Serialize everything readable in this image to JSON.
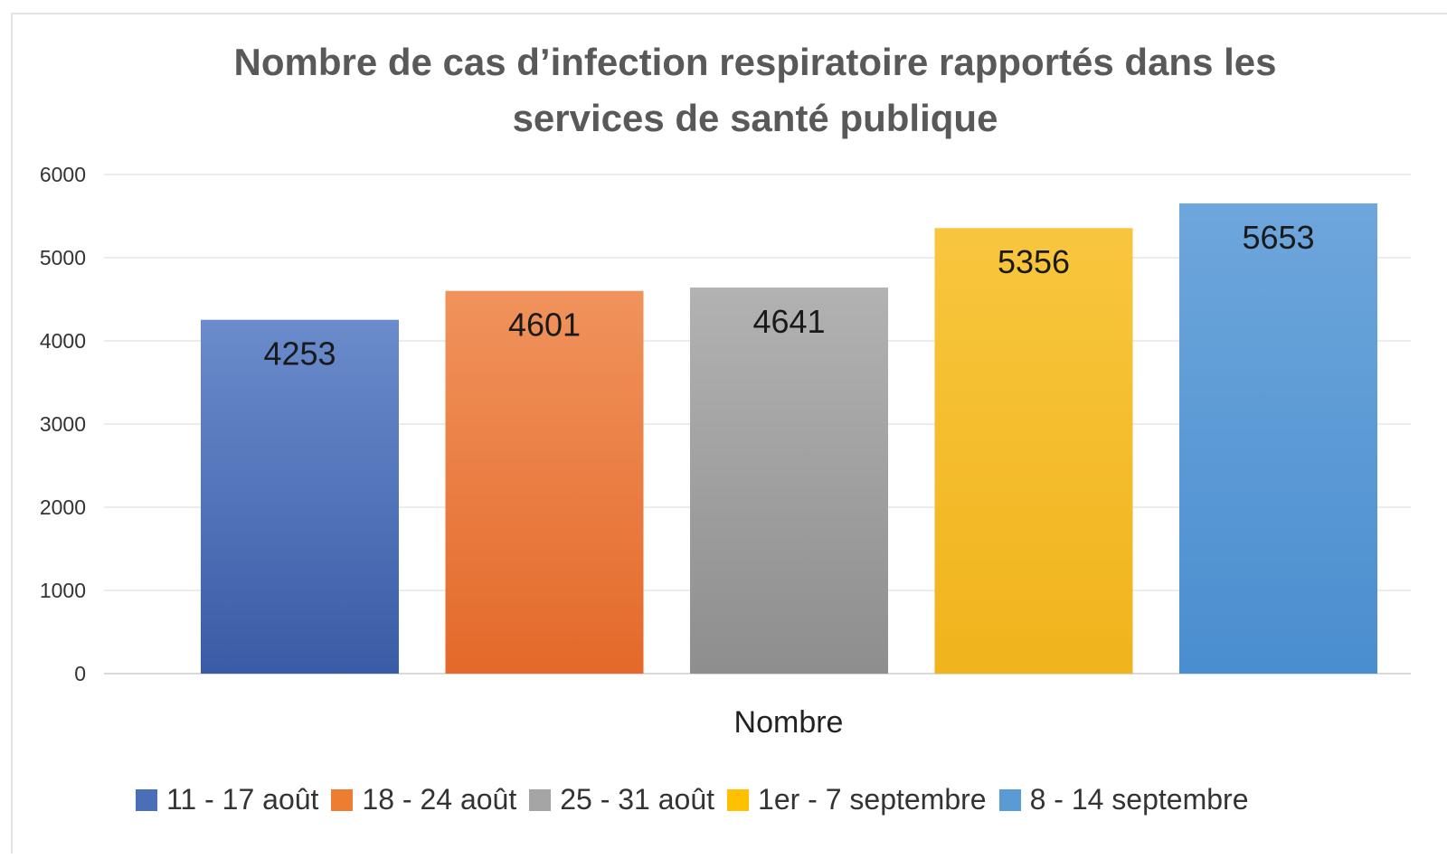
{
  "chart_data": {
    "type": "bar",
    "title": "Nombre de cas d’infection respiratoire rapportés dans les services de santé publique",
    "title_lines": [
      "Nombre de cas d’infection respiratoire rapportés dans les",
      "services de santé publique"
    ],
    "xlabel": "Nombre",
    "ylabel": "",
    "ylim": [
      0,
      6000
    ],
    "yticks": [
      0,
      1000,
      2000,
      3000,
      4000,
      5000,
      6000
    ],
    "grid": true,
    "legend_position": "bottom",
    "categories": [
      "Nombre"
    ],
    "series": [
      {
        "name": "11 - 17 août",
        "values": [
          4253
        ],
        "color": "#4a6fb8",
        "color_top": "#6a8ccc",
        "color_bottom": "#3a5ca6"
      },
      {
        "name": "18 - 24 août",
        "values": [
          4601
        ],
        "color": "#ed7d31",
        "color_top": "#f0935c",
        "color_bottom": "#e4692a"
      },
      {
        "name": "25 - 31 août",
        "values": [
          4641
        ],
        "color": "#a5a5a5",
        "color_top": "#b2b2b2",
        "color_bottom": "#8e8e8e"
      },
      {
        "name": "1er - 7 septembre",
        "values": [
          5356
        ],
        "color": "#ffc000",
        "color_top": "#f8c63e",
        "color_bottom": "#f0b41c"
      },
      {
        "name": "8 - 14 septembre",
        "values": [
          5653
        ],
        "color": "#5b9bd5",
        "color_top": "#6ea6dc",
        "color_bottom": "#4a8ecf"
      }
    ]
  }
}
